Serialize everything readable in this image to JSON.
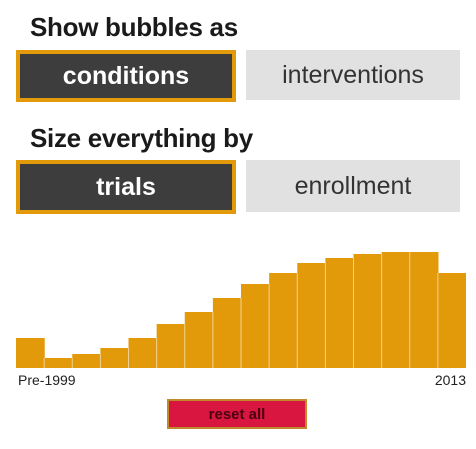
{
  "bubbles": {
    "heading": "Show bubbles as",
    "options": [
      "conditions",
      "interventions"
    ],
    "selected": "conditions"
  },
  "size": {
    "heading": "Size everything by",
    "options": [
      "trials",
      "enrollment"
    ],
    "selected": "trials"
  },
  "colors": {
    "accent": "#e39a0a",
    "active_bg": "#3d3d3d",
    "inactive_bg": "#e1e1e1",
    "reset_bg": "#d9163f"
  },
  "chart_data": {
    "type": "area",
    "categories": [
      "Pre-1999",
      "",
      "",
      "",
      "",
      "",
      "",
      "",
      "",
      "",
      "",
      "",
      "",
      "",
      "",
      "2013"
    ],
    "values": [
      30,
      10,
      14,
      20,
      30,
      44,
      56,
      70,
      84,
      95,
      105,
      110,
      114,
      116,
      116,
      95
    ],
    "ylim": [
      0,
      128
    ],
    "x_start_label": "Pre-1999",
    "x_end_label": "2013",
    "title": "",
    "xlabel": "",
    "ylabel": "",
    "grid": false
  },
  "reset": {
    "label": "reset all"
  }
}
